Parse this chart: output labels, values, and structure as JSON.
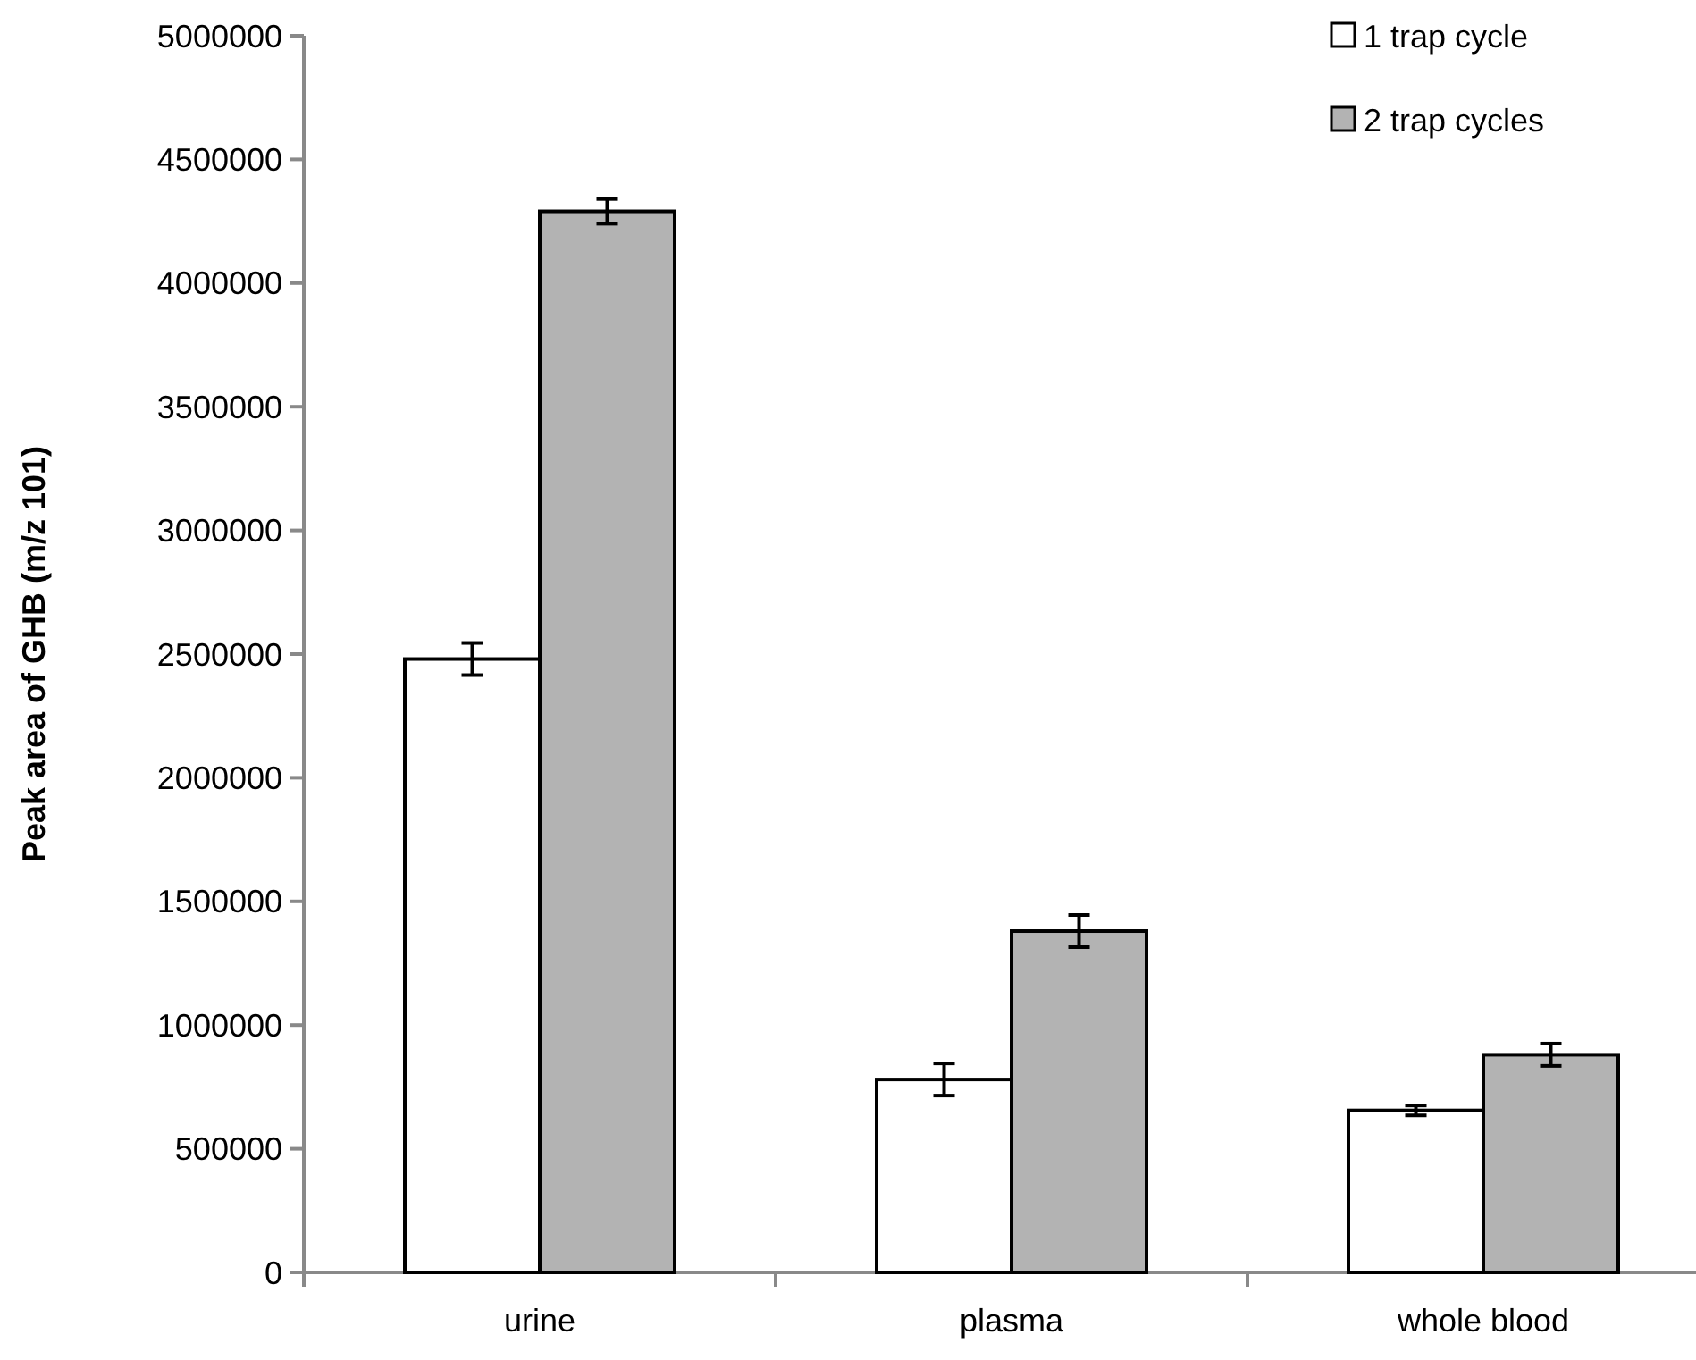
{
  "chart_data": {
    "type": "bar",
    "ylabel": "Peak area of GHB (m/z 101)",
    "categories": [
      "urine",
      "plasma",
      "whole blood"
    ],
    "series": [
      {
        "name": "1 trap cycle",
        "color": "#ffffff",
        "values": [
          2480000,
          780000,
          655000
        ],
        "errors": [
          65000,
          65000,
          20000
        ]
      },
      {
        "name": "2 trap cycles",
        "color": "#b3b3b3",
        "values": [
          4290000,
          1380000,
          880000
        ],
        "errors": [
          50000,
          65000,
          45000
        ]
      }
    ],
    "ylim": [
      0,
      5000000
    ],
    "yticks": [
      0,
      500000,
      1000000,
      1500000,
      2000000,
      2500000,
      3000000,
      3500000,
      4000000,
      4500000,
      5000000
    ],
    "grid": false,
    "legend": "top right"
  }
}
